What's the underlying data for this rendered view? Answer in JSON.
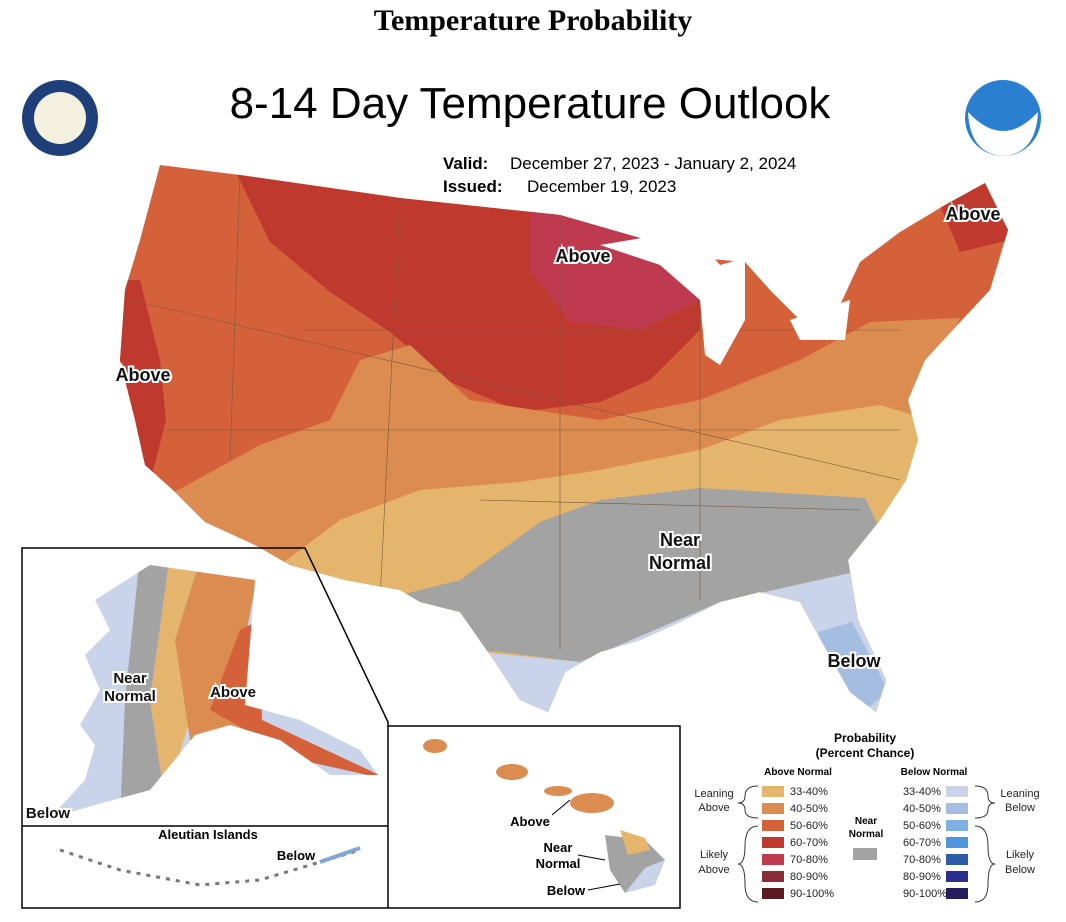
{
  "page_title": "Temperature Probability",
  "map": {
    "title": "8-14 Day Temperature Outlook",
    "valid_label": "Valid:",
    "valid": "December 27, 2023 - January 2, 2024",
    "issued_label": "Issued:",
    "issued": "December 19, 2023",
    "conus_labels": {
      "above_north": "Above",
      "above_west": "Above",
      "above_east": "Above",
      "near": [
        "Near",
        "Normal"
      ],
      "below": "Below"
    },
    "alaska_labels": {
      "near": [
        "Near",
        "Normal"
      ],
      "above": "Above",
      "below": "Below"
    },
    "aleutian": {
      "title": "Aleutian Islands",
      "below": "Below"
    },
    "hawaii_labels": {
      "above": "Above",
      "near": [
        "Near",
        "Normal"
      ],
      "below": "Below"
    }
  },
  "legend": {
    "title": [
      "Probability",
      "(Percent Chance)"
    ],
    "above_header": "Above Normal",
    "below_header": "Below Normal",
    "near": [
      "Near",
      "Normal"
    ],
    "near_color": "#a3a3a3",
    "leaning_above": [
      "Leaning",
      "Above"
    ],
    "likely_above": [
      "Likely",
      "Above"
    ],
    "leaning_below": [
      "Leaning",
      "Below"
    ],
    "likely_below": [
      "Likely",
      "Below"
    ],
    "above": [
      {
        "label": "33-40%",
        "color": "#e5b56e"
      },
      {
        "label": "40-50%",
        "color": "#dc8c50"
      },
      {
        "label": "50-60%",
        "color": "#d5613a"
      },
      {
        "label": "60-70%",
        "color": "#c0392e"
      },
      {
        "label": "70-80%",
        "color": "#bf3a4f"
      },
      {
        "label": "80-90%",
        "color": "#8a2b35"
      },
      {
        "label": "90-100%",
        "color": "#5a1a20"
      }
    ],
    "below": [
      {
        "label": "33-40%",
        "color": "#c9d3ea"
      },
      {
        "label": "40-50%",
        "color": "#a5bde0"
      },
      {
        "label": "50-60%",
        "color": "#7fb0e2"
      },
      {
        "label": "60-70%",
        "color": "#4f97dc"
      },
      {
        "label": "70-80%",
        "color": "#2a5ca8"
      },
      {
        "label": "80-90%",
        "color": "#2a2f8f"
      },
      {
        "label": "90-100%",
        "color": "#241d5e"
      }
    ]
  }
}
